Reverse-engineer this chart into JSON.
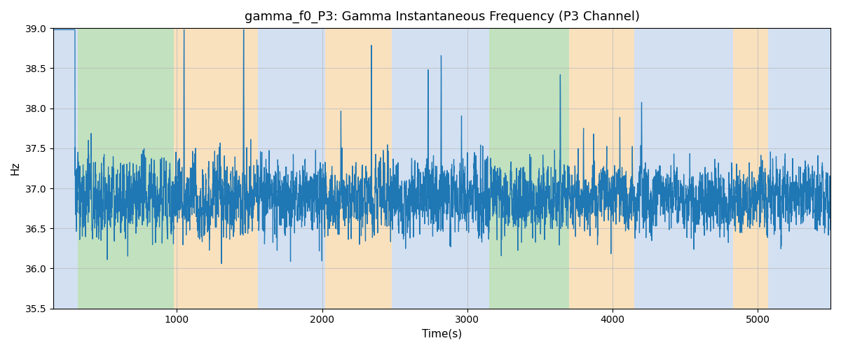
{
  "title": "gamma_f0_P3: Gamma Instantaneous Frequency (P3 Channel)",
  "xlabel": "Time(s)",
  "ylabel": "Hz",
  "xlim": [
    150,
    5500
  ],
  "ylim": [
    35.5,
    39.0
  ],
  "yticks": [
    35.5,
    36.0,
    36.5,
    37.0,
    37.5,
    38.0,
    38.5,
    39.0
  ],
  "xticks": [
    1000,
    2000,
    3000,
    4000,
    5000
  ],
  "line_color": "#1f77b4",
  "line_width": 0.9,
  "bg_bands": [
    {
      "xmin": 150,
      "xmax": 320,
      "color": "#adc8e8",
      "alpha": 0.55
    },
    {
      "xmin": 320,
      "xmax": 980,
      "color": "#90c98a",
      "alpha": 0.55
    },
    {
      "xmin": 980,
      "xmax": 1560,
      "color": "#f5c98a",
      "alpha": 0.55
    },
    {
      "xmin": 1560,
      "xmax": 2020,
      "color": "#adc8e8",
      "alpha": 0.55
    },
    {
      "xmin": 2020,
      "xmax": 2480,
      "color": "#f5c98a",
      "alpha": 0.55
    },
    {
      "xmin": 2480,
      "xmax": 3050,
      "color": "#adc8e8",
      "alpha": 0.55
    },
    {
      "xmin": 3050,
      "xmax": 3150,
      "color": "#adc8e8",
      "alpha": 0.55
    },
    {
      "xmin": 3150,
      "xmax": 3700,
      "color": "#90c98a",
      "alpha": 0.55
    },
    {
      "xmin": 3700,
      "xmax": 4150,
      "color": "#f5c98a",
      "alpha": 0.55
    },
    {
      "xmin": 4150,
      "xmax": 4830,
      "color": "#adc8e8",
      "alpha": 0.55
    },
    {
      "xmin": 4830,
      "xmax": 5070,
      "color": "#f5c98a",
      "alpha": 0.55
    },
    {
      "xmin": 5070,
      "xmax": 5500,
      "color": "#adc8e8",
      "alpha": 0.55
    }
  ],
  "grid_color": "#bbbbbb",
  "grid_alpha": 0.7,
  "figsize": [
    12.0,
    5.0
  ],
  "dpi": 100,
  "background_color": "#ffffff"
}
